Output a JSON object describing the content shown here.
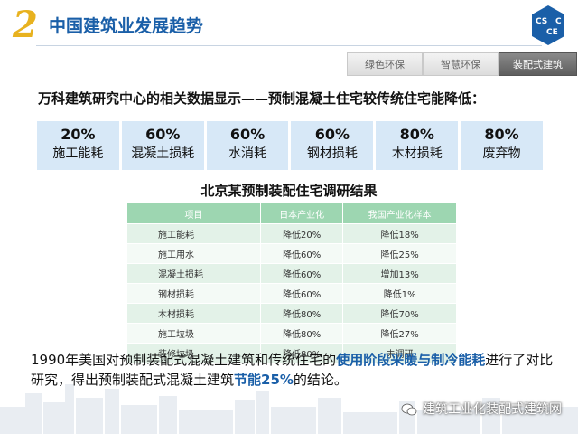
{
  "header": {
    "number": "2",
    "title": "中国建筑业发展趋势",
    "logo_text": "CSCEC"
  },
  "tabs": [
    {
      "label": "绿色环保",
      "active": false
    },
    {
      "label": "智慧环保",
      "active": false
    },
    {
      "label": "装配式建筑",
      "active": true
    }
  ],
  "subtitle": "万科建筑研究中心的相关数据显示——预制混凝土住宅较传统住宅能降低：",
  "stats": [
    {
      "value": "20%",
      "label": "施工能耗"
    },
    {
      "value": "60%",
      "label": "混凝土损耗"
    },
    {
      "value": "60%",
      "label": "水消耗"
    },
    {
      "value": "60%",
      "label": "钢材损耗"
    },
    {
      "value": "80%",
      "label": "木材损耗"
    },
    {
      "value": "80%",
      "label": "废弃物"
    }
  ],
  "table": {
    "title": "北京某预制装配住宅调研结果",
    "headers": [
      "项目",
      "日本产业化",
      "我国产业化样本"
    ],
    "rows": [
      [
        "施工能耗",
        "降低20%",
        "降低18%"
      ],
      [
        "施工用水",
        "降低60%",
        "降低25%"
      ],
      [
        "混凝土损耗",
        "降低60%",
        "增加13%"
      ],
      [
        "钢材损耗",
        "降低60%",
        "降低1%"
      ],
      [
        "木材损耗",
        "降低80%",
        "降低70%"
      ],
      [
        "施工垃圾",
        "降低80%",
        "降低27%"
      ],
      [
        "装修垃圾",
        "降低80%",
        "未调研"
      ]
    ]
  },
  "conclusion": {
    "part1": "1990年美国对预制装配式混凝土建筑和传统住宅的",
    "highlight1": "使用阶段采暖与制冷能耗",
    "part2": "进行了对比研究，得出预制装配式混凝土建筑",
    "highlight2": "节能25%",
    "part3": "的结论。"
  },
  "watermark": "建筑工业化装配式建筑网",
  "colors": {
    "accent_blue": "#1a5fa8",
    "number_gold": "#e8b21f",
    "stat_bg": "#d7e8f7",
    "table_header": "#9dd6b1"
  }
}
